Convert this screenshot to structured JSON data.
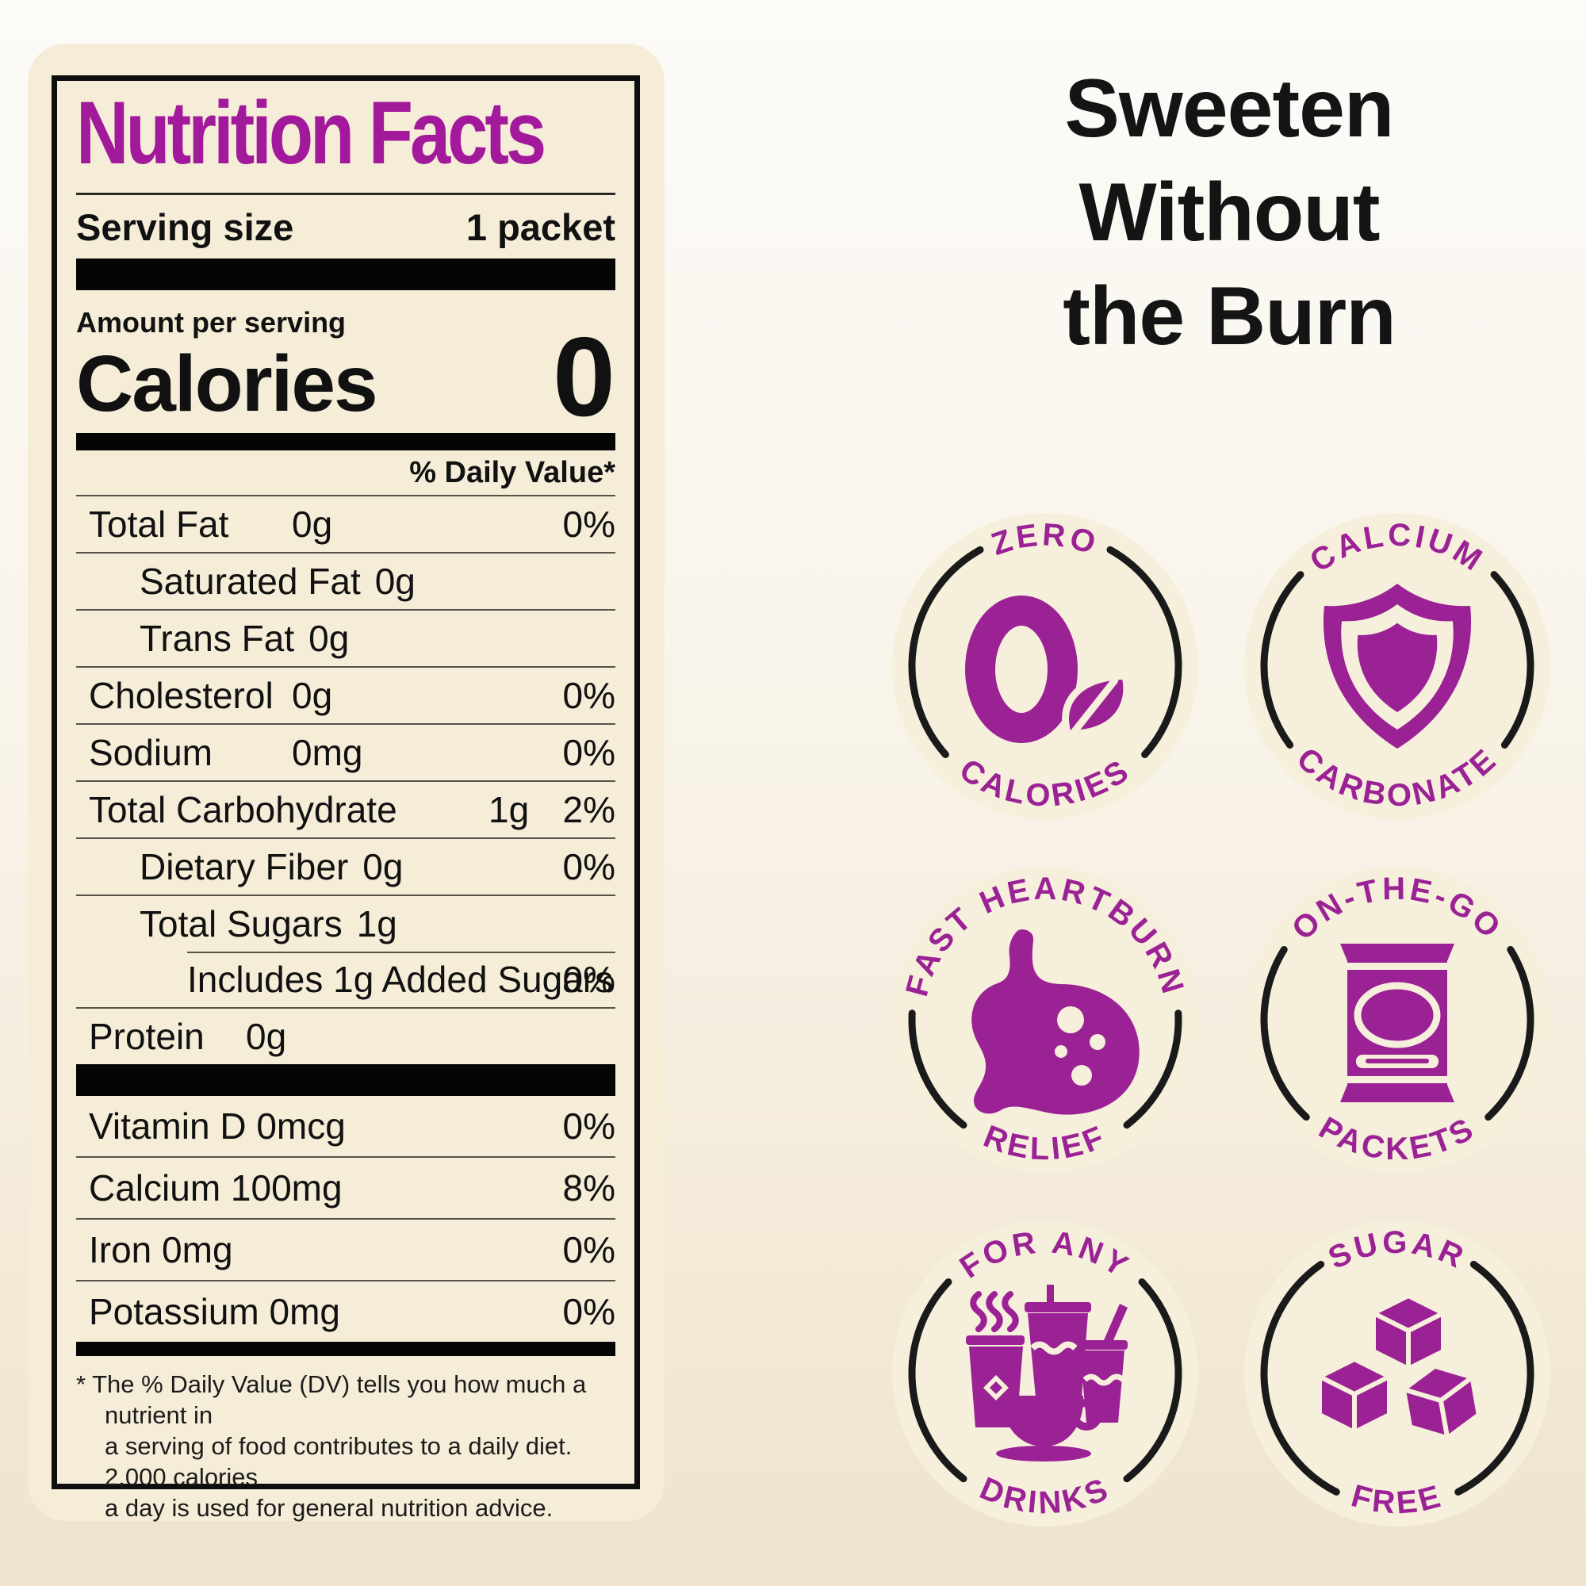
{
  "colors": {
    "purple": "#9b2295",
    "title_purple": "#a2199c",
    "cream": "#f5edd7",
    "badge_cream": "#f6efdb",
    "ink": "#141414"
  },
  "label": {
    "title": "Nutrition Facts",
    "serving": {
      "name": "Serving size",
      "value": "1 packet"
    },
    "amount_per_serving": "Amount per serving",
    "calories_word": "Calories",
    "calories_value": "0",
    "daily_value_header": "% Daily Value*",
    "rows": [
      {
        "name": "Total Fat",
        "amount": "0g",
        "dv": "0%",
        "indent": 0,
        "tab": "a",
        "rule": "full"
      },
      {
        "name": "Saturated Fat",
        "amount": "0g",
        "dv": "",
        "indent": 1,
        "tab": "in",
        "rule": "full"
      },
      {
        "name": "Trans Fat",
        "amount": "0g",
        "dv": "",
        "indent": 1,
        "tab": "in",
        "rule": "full"
      },
      {
        "name": "Cholesterol",
        "amount": "0g",
        "dv": "0%",
        "indent": 0,
        "tab": "a",
        "rule": "full"
      },
      {
        "name": "Sodium",
        "amount": "0mg",
        "dv": "0%",
        "indent": 0,
        "tab": "a",
        "rule": "full"
      },
      {
        "name": "Total Carbohydrate",
        "amount": "1g",
        "dv": "2%",
        "indent": 0,
        "tab": "b",
        "rule": "full"
      },
      {
        "name": "Dietary Fiber",
        "amount": "0g",
        "dv": "0%",
        "indent": 1,
        "tab": "in",
        "rule": "full"
      },
      {
        "name": "Total Sugars",
        "amount": "1g",
        "dv": "",
        "indent": 1,
        "tab": "in",
        "rule": "partial"
      },
      {
        "name": "Includes 1g Added Sugars",
        "amount": "",
        "dv": "0%",
        "indent": 2,
        "tab": "in",
        "rule": "full"
      },
      {
        "name": "Protein",
        "amount": "0g",
        "dv": "",
        "indent": 0,
        "tab": "c",
        "rule": "none"
      }
    ],
    "micronutrients": [
      {
        "name": "Vitamin D 0mcg",
        "dv": "0%"
      },
      {
        "name": "Calcium 100mg",
        "dv": "8%"
      },
      {
        "name": "Iron 0mg",
        "dv": "0%"
      },
      {
        "name": "Potassium 0mg",
        "dv": "0%"
      }
    ],
    "footnote_lines": [
      "* The % Daily Value (DV) tells you how much a nutrient in",
      "a serving of food contributes to a daily diet. 2,000 calories",
      "a day is used for general nutrition advice."
    ]
  },
  "headline": {
    "lines": [
      "Sweeten",
      "Without",
      "the Burn"
    ]
  },
  "badges": [
    {
      "top": "ZERO",
      "bottom": "CALORIES",
      "icon": "zero-calories-icon"
    },
    {
      "top": "CALCIUM",
      "bottom": "CARBONATE",
      "icon": "calcium-shield-icon"
    },
    {
      "top": "FAST HEARTBURN",
      "bottom": "RELIEF",
      "icon": "stomach-icon"
    },
    {
      "top": "ON-THE-GO",
      "bottom": "PACKETS",
      "icon": "packet-icon"
    },
    {
      "top": "FOR ANY",
      "bottom": "DRINKS",
      "icon": "drinks-icon"
    },
    {
      "top": "SUGAR",
      "bottom": "FREE",
      "icon": "sugar-cubes-icon"
    }
  ]
}
